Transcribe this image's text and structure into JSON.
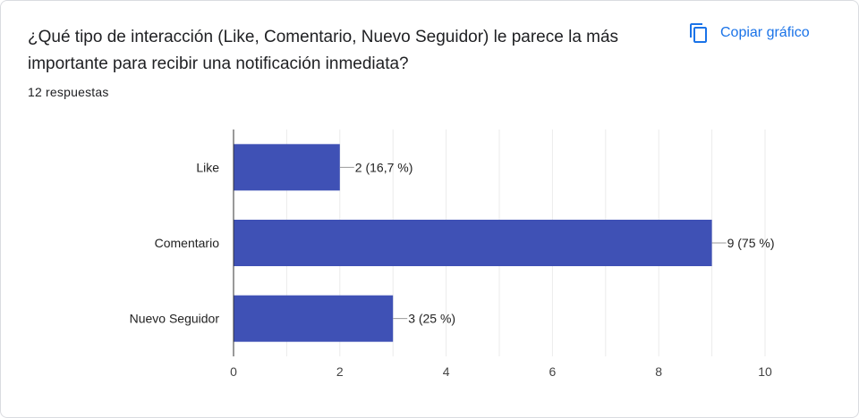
{
  "header": {
    "question": "¿Qué tipo de interacción (Like, Comentario, Nuevo Seguidor) le parece la más importante para recibir una notificación inmediata?",
    "responses": "12 respuestas",
    "copy_label": "Copiar gráfico",
    "copy_icon": "copy-icon"
  },
  "colors": {
    "bar": "#3f51b5",
    "accent": "#1a73e8",
    "grid": "#ebebeb",
    "axis": "#333333",
    "text": "#222222"
  },
  "chart_data": {
    "type": "bar",
    "orientation": "horizontal",
    "categories": [
      "Like",
      "Comentario",
      "Nuevo Seguidor"
    ],
    "values": [
      2,
      9,
      3
    ],
    "data_labels": [
      "2 (16,7 %)",
      "9 (75 %)",
      "3 (25 %)"
    ],
    "xlim": [
      0,
      10
    ],
    "x_ticks": [
      0,
      2,
      4,
      6,
      8,
      10
    ],
    "grid": true,
    "legend": "none"
  }
}
